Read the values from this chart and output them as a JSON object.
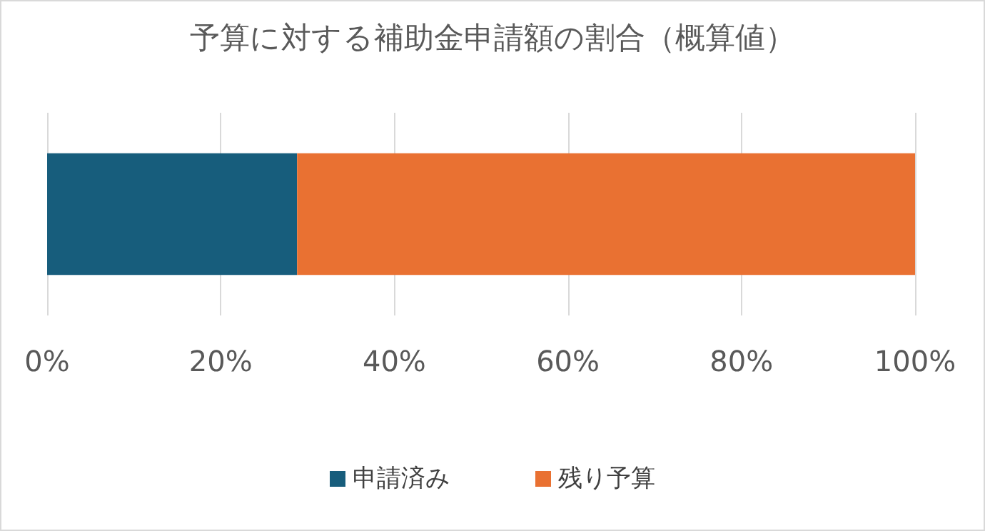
{
  "chart_data": {
    "type": "bar",
    "orientation": "horizontal",
    "stacked": true,
    "title": "予算に対する補助金申請額の割合（概算値）",
    "categories": [
      null
    ],
    "series": [
      {
        "name": "申請済み",
        "color": "#175d7c",
        "values": [
          28.8
        ]
      },
      {
        "name": "残り予算",
        "color": "#e97132",
        "values": [
          71.2
        ]
      }
    ],
    "xlim": [
      0,
      100
    ],
    "xticks": [
      {
        "value": 0,
        "label": "0%"
      },
      {
        "value": 20,
        "label": "20%"
      },
      {
        "value": 40,
        "label": "40%"
      },
      {
        "value": 60,
        "label": "60%"
      },
      {
        "value": 80,
        "label": "80%"
      },
      {
        "value": 100,
        "label": "100%"
      }
    ],
    "grid": "x",
    "legend": "bottom"
  }
}
